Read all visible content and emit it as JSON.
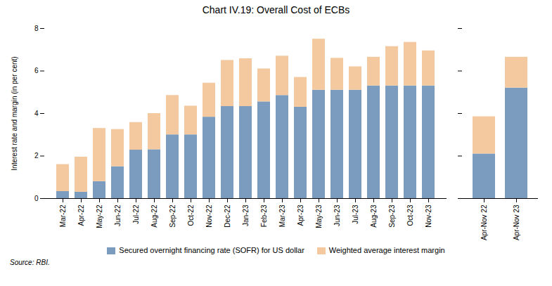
{
  "chart_data": [
    {
      "type": "bar",
      "stacked": true,
      "title": "Chart IV.19: Overall Cost of ECBs",
      "ylabel": "Interest rate and margin (in per cent)",
      "annotations": [
        "Source: RBI."
      ],
      "categories": [
        "Mar-22",
        "Apr-22",
        "May-22",
        "Jun-22",
        "Jul-22",
        "Aug-22",
        "Sep-22",
        "Oct-22",
        "Nov-22",
        "Dec-22",
        "Jan-23",
        "Feb-23",
        "Mar-23",
        "Apr-23",
        "May-23",
        "Jun-23",
        "Jul-23",
        "Aug-23",
        "Sep-23",
        "Oct-23",
        "Nov-23"
      ],
      "series": [
        {
          "name": "Secured overnight financing rate (SOFR) for US dollar",
          "color": "#7b9bbf",
          "values": [
            0.33,
            0.3,
            0.8,
            1.5,
            2.28,
            2.3,
            3.0,
            3.0,
            3.83,
            4.33,
            4.33,
            4.55,
            4.85,
            4.3,
            5.1,
            5.1,
            5.1,
            5.3,
            5.3,
            5.3,
            5.3
          ]
        },
        {
          "name": "Weighted average interest margin",
          "color": "#f5c9a0",
          "values": [
            1.27,
            1.65,
            2.5,
            1.75,
            1.3,
            1.7,
            1.85,
            1.35,
            1.6,
            2.17,
            2.25,
            1.55,
            1.85,
            1.4,
            2.4,
            1.5,
            1.1,
            1.35,
            1.85,
            2.05,
            1.65
          ]
        }
      ],
      "ylim": [
        0,
        8
      ],
      "yticks": [
        0,
        2,
        4,
        6,
        8
      ],
      "grid": false,
      "legend": "bottom"
    },
    {
      "type": "bar",
      "stacked": true,
      "categories": [
        "Apr-Nov 22",
        "Apr-Nov 23"
      ],
      "series": [
        {
          "name": "Secured overnight financing rate (SOFR) for US dollar",
          "color": "#7b9bbf",
          "values": [
            2.1,
            5.2
          ]
        },
        {
          "name": "Weighted average interest margin",
          "color": "#f5c9a0",
          "values": [
            1.75,
            1.45
          ]
        }
      ],
      "ylim": [
        0,
        8
      ],
      "yticks": [
        0,
        2,
        4,
        6,
        8
      ],
      "grid": false,
      "tick_labels": "x"
    }
  ]
}
